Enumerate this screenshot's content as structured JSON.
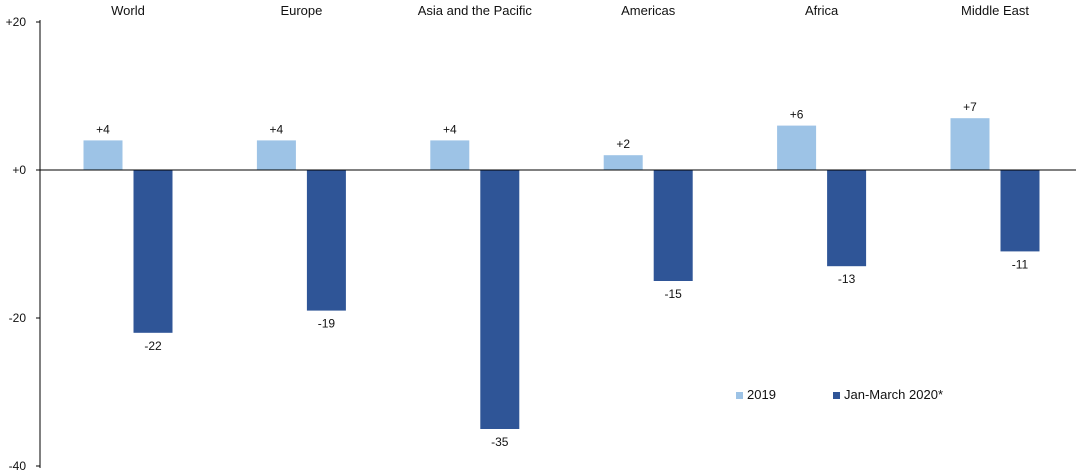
{
  "chart_data": {
    "type": "bar",
    "title": "",
    "xlabel": "",
    "ylabel": "",
    "categories": [
      "World",
      "Europe",
      "Asia and the Pacific",
      "Americas",
      "Africa",
      "Middle East"
    ],
    "series": [
      {
        "name": "2019",
        "color": "#9dc3e6",
        "values": [
          4,
          4,
          4,
          2,
          6,
          7
        ],
        "labels": [
          "+4",
          "+4",
          "+4",
          "+2",
          "+6",
          "+7"
        ]
      },
      {
        "name": "Jan-March 2020*",
        "color": "#2f5597",
        "values": [
          -22,
          -19,
          -35,
          -15,
          -13,
          -11
        ],
        "labels": [
          "-22",
          "-19",
          "-35",
          "-15",
          "-13",
          "-11"
        ]
      }
    ],
    "ylim": [
      -40,
      20
    ],
    "yticks": [
      {
        "value": 20,
        "label": "+20"
      },
      {
        "value": 0,
        "label": "+0"
      },
      {
        "value": -20,
        "label": "-20"
      },
      {
        "value": -40,
        "label": "-40"
      }
    ],
    "grid": false,
    "legend_position": "bottom-right",
    "category_labels_position": "top"
  }
}
